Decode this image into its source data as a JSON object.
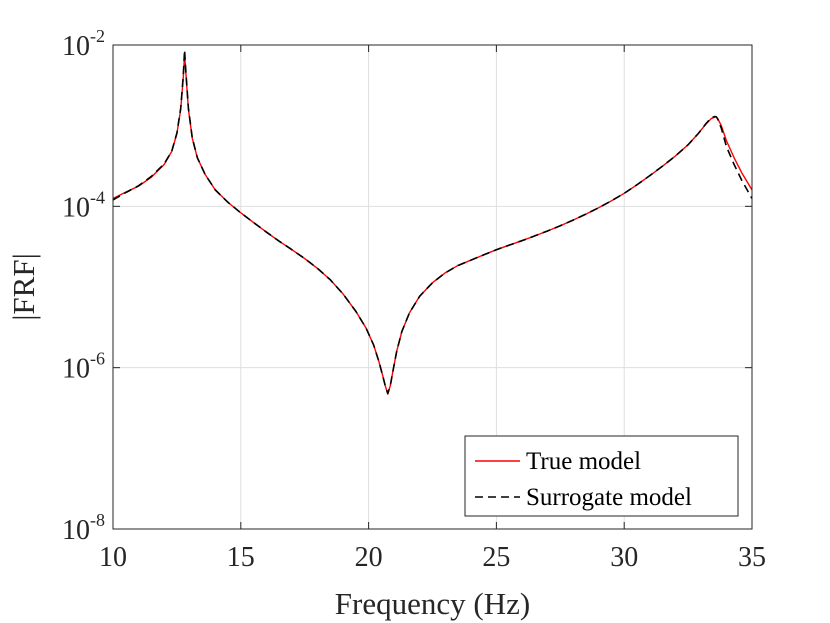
{
  "chart_data": {
    "type": "line",
    "title": "",
    "xlabel": "Frequency (Hz)",
    "ylabel": "|FRF|",
    "x_scale": "linear",
    "y_scale": "log",
    "xlim": [
      10,
      35
    ],
    "ylim": [
      1e-08,
      0.01
    ],
    "grid": true,
    "x_ticks": [
      {
        "value": 10,
        "label": "10"
      },
      {
        "value": 15,
        "label": "15"
      },
      {
        "value": 20,
        "label": "20"
      },
      {
        "value": 25,
        "label": "25"
      },
      {
        "value": 30,
        "label": "30"
      },
      {
        "value": 35,
        "label": "35"
      }
    ],
    "y_ticks": [
      {
        "value": 1e-08,
        "base": "10",
        "exponent": "-8"
      },
      {
        "value": 1e-06,
        "base": "10",
        "exponent": "-6"
      },
      {
        "value": 0.0001,
        "base": "10",
        "exponent": "-4"
      },
      {
        "value": 0.01,
        "base": "10",
        "exponent": "-2"
      }
    ],
    "legend": {
      "position": "bottom-right"
    },
    "series": [
      {
        "name": "True model",
        "color": "#ff0000",
        "dash": "solid",
        "x": [
          10.0,
          10.5,
          11.0,
          11.5,
          12.0,
          12.3,
          12.5,
          12.65,
          12.75,
          12.8,
          12.85,
          12.95,
          13.1,
          13.3,
          13.6,
          14.0,
          14.5,
          15.0,
          15.5,
          16.0,
          16.5,
          17.0,
          17.5,
          18.0,
          18.5,
          19.0,
          19.5,
          19.9,
          20.2,
          20.4,
          20.55,
          20.65,
          20.75,
          20.85,
          20.95,
          21.1,
          21.3,
          21.6,
          22.0,
          22.5,
          23.0,
          23.5,
          24.0,
          24.5,
          25.0,
          25.5,
          26.0,
          26.5,
          27.0,
          27.5,
          28.0,
          28.5,
          29.0,
          29.5,
          30.0,
          30.5,
          31.0,
          31.5,
          32.0,
          32.5,
          32.9,
          33.2,
          33.4,
          33.55,
          33.6,
          33.65,
          33.8,
          34.0,
          34.3,
          34.6,
          35.0
        ],
        "y": [
          0.000125,
          0.00015,
          0.000178,
          0.00023,
          0.00033,
          0.00048,
          0.0008,
          0.0016,
          0.004,
          0.0078,
          0.0045,
          0.0016,
          0.0007,
          0.0004,
          0.00025,
          0.00016,
          0.000112,
          8.3e-05,
          6.3e-05,
          4.8e-05,
          3.7e-05,
          2.9e-05,
          2.25e-05,
          1.7e-05,
          1.23e-05,
          8.2e-06,
          5e-06,
          3.1e-06,
          1.9e-06,
          1.2e-06,
          8e-07,
          6e-07,
          4.7e-07,
          6e-07,
          9e-07,
          1.6e-06,
          2.8e-06,
          4.8e-06,
          7.7e-06,
          1.13e-05,
          1.5e-05,
          1.85e-05,
          2.15e-05,
          2.5e-05,
          2.9e-05,
          3.3e-05,
          3.75e-05,
          4.3e-05,
          4.95e-05,
          5.75e-05,
          6.75e-05,
          8e-05,
          9.6e-05,
          0.000117,
          0.000145,
          0.000185,
          0.00024,
          0.000315,
          0.00042,
          0.00058,
          0.0008,
          0.00105,
          0.00122,
          0.00128,
          0.00128,
          0.00124,
          0.001,
          0.00065,
          0.0004,
          0.00026,
          0.00016
        ]
      },
      {
        "name": "Surrogate model",
        "color": "#000000",
        "dash": "dashed",
        "x": [
          10.0,
          10.5,
          11.0,
          11.5,
          12.0,
          12.3,
          12.5,
          12.65,
          12.75,
          12.8,
          12.85,
          12.95,
          13.1,
          13.3,
          13.6,
          14.0,
          14.5,
          15.0,
          15.5,
          16.0,
          16.5,
          17.0,
          17.5,
          18.0,
          18.5,
          19.0,
          19.5,
          19.9,
          20.2,
          20.4,
          20.55,
          20.65,
          20.75,
          20.85,
          20.95,
          21.1,
          21.3,
          21.6,
          22.0,
          22.5,
          23.0,
          23.5,
          24.0,
          24.5,
          25.0,
          25.5,
          26.0,
          26.5,
          27.0,
          27.5,
          28.0,
          28.5,
          29.0,
          29.5,
          30.0,
          30.5,
          31.0,
          31.5,
          32.0,
          32.5,
          32.9,
          33.2,
          33.4,
          33.55,
          33.6,
          33.65,
          33.8,
          34.0,
          34.3,
          34.6,
          35.0
        ],
        "y": [
          0.00012,
          0.000148,
          0.00018,
          0.000235,
          0.000335,
          0.000485,
          0.00081,
          0.00165,
          0.0042,
          0.0087,
          0.0047,
          0.00165,
          0.00071,
          0.0004,
          0.00025,
          0.00016,
          0.000112,
          8.3e-05,
          6.3e-05,
          4.8e-05,
          3.7e-05,
          2.9e-05,
          2.25e-05,
          1.7e-05,
          1.23e-05,
          8.2e-06,
          5e-06,
          3.1e-06,
          1.9e-06,
          1.2e-06,
          8e-07,
          6e-07,
          4.8e-07,
          6e-07,
          9e-07,
          1.6e-06,
          2.8e-06,
          4.8e-06,
          7.7e-06,
          1.13e-05,
          1.5e-05,
          1.85e-05,
          2.15e-05,
          2.5e-05,
          2.9e-05,
          3.3e-05,
          3.75e-05,
          4.3e-05,
          4.95e-05,
          5.75e-05,
          6.75e-05,
          8e-05,
          9.6e-05,
          0.000117,
          0.000145,
          0.000185,
          0.00024,
          0.000315,
          0.00042,
          0.00058,
          0.0008,
          0.00106,
          0.00125,
          0.0013,
          0.00129,
          0.00122,
          0.00093,
          0.00055,
          0.00033,
          0.00021,
          0.000125
        ]
      }
    ]
  }
}
